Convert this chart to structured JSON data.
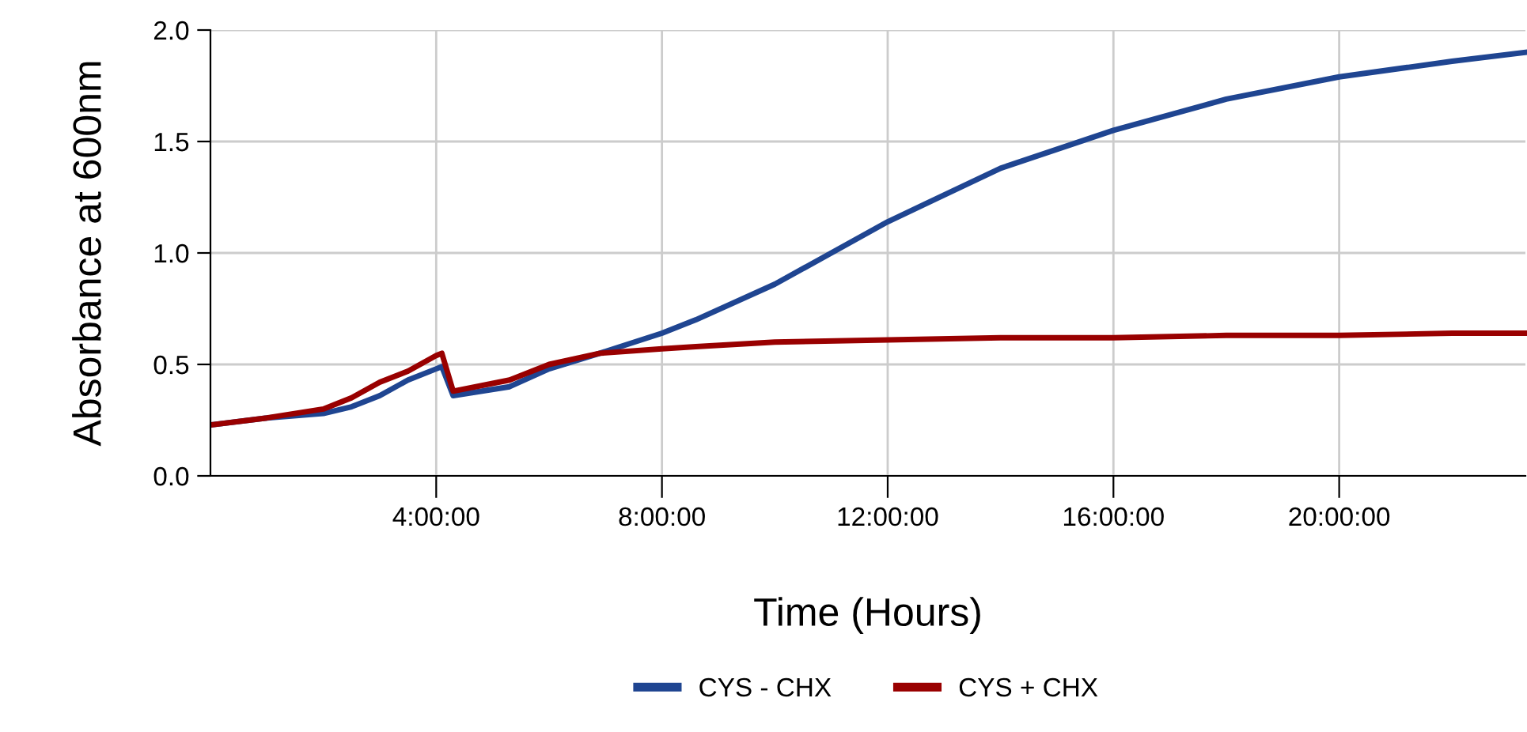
{
  "chart_data": {
    "type": "line",
    "xlabel": "Time (Hours)",
    "ylabel": "Absorbance at 600nm",
    "xlim": [
      0,
      23.3
    ],
    "ylim": [
      0,
      2.0
    ],
    "xticks": [
      {
        "value": 4,
        "label": "4:00:00"
      },
      {
        "value": 8,
        "label": "8:00:00"
      },
      {
        "value": 12,
        "label": "12:00:00"
      },
      {
        "value": 16,
        "label": "16:00:00"
      },
      {
        "value": 20,
        "label": "20:00:00"
      }
    ],
    "yticks": [
      {
        "value": 0,
        "label": "0.0"
      },
      {
        "value": 0.5,
        "label": "0.5"
      },
      {
        "value": 1.0,
        "label": "1.0"
      },
      {
        "value": 1.5,
        "label": "1.5"
      },
      {
        "value": 2.0,
        "label": "2.0"
      }
    ],
    "grid": true,
    "legend": "bottom",
    "line_style": "solid",
    "marker": "none",
    "series": [
      {
        "name": "CYS - CHX",
        "color": "#1f4591",
        "x": [
          0.05,
          1,
          2,
          2.5,
          3,
          3.5,
          4,
          4.1,
          4.3,
          5.3,
          6,
          6.9,
          8,
          8.6,
          10,
          12,
          14,
          16,
          18,
          20,
          22,
          23.3
        ],
        "values": [
          0.23,
          0.26,
          0.28,
          0.31,
          0.36,
          0.43,
          0.48,
          0.49,
          0.36,
          0.4,
          0.48,
          0.55,
          0.64,
          0.7,
          0.86,
          1.14,
          1.38,
          1.55,
          1.69,
          1.79,
          1.86,
          1.9
        ]
      },
      {
        "name": "CYS + CHX",
        "color": "#990000",
        "x": [
          0.05,
          1,
          2,
          2.5,
          3,
          3.5,
          4,
          4.1,
          4.3,
          5.3,
          6,
          6.9,
          8,
          8.6,
          10,
          12,
          14,
          16,
          18,
          20,
          22,
          23.3
        ],
        "values": [
          0.23,
          0.26,
          0.3,
          0.35,
          0.42,
          0.47,
          0.54,
          0.55,
          0.38,
          0.43,
          0.5,
          0.55,
          0.57,
          0.58,
          0.6,
          0.61,
          0.62,
          0.62,
          0.63,
          0.63,
          0.64,
          0.64
        ]
      }
    ]
  }
}
